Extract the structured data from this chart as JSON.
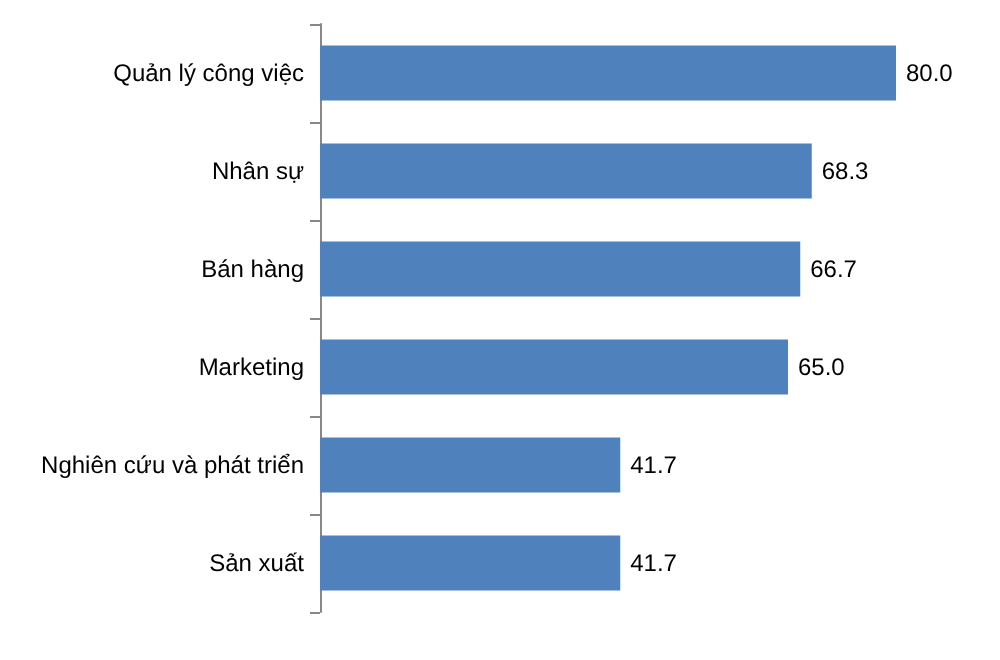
{
  "chart_data": {
    "type": "bar",
    "orientation": "horizontal",
    "categories": [
      "Quản lý công việc",
      "Nhân sự",
      "Bán hàng",
      "Marketing",
      "Nghiên cứu và phát triển",
      "Sản xuất"
    ],
    "values": [
      80.0,
      68.3,
      66.7,
      65.0,
      41.7,
      41.7
    ],
    "value_labels": [
      "80.0",
      "68.3",
      "66.7",
      "65.0",
      "41.7",
      "41.7"
    ],
    "color": "#4f81bd",
    "tick_labels": "y"
  }
}
